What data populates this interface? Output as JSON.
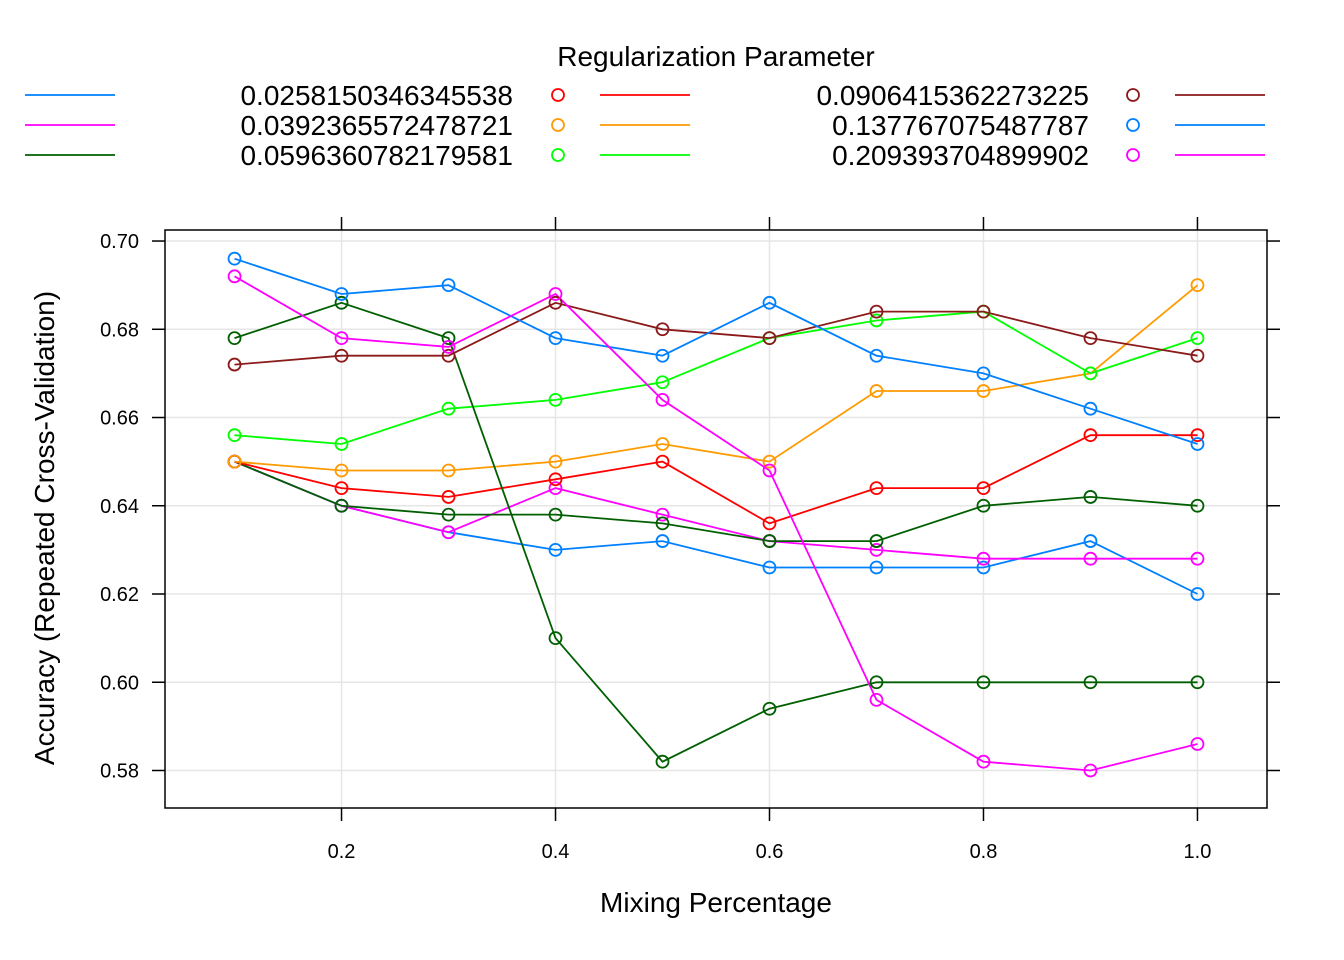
{
  "chart_data": {
    "type": "line",
    "title": "",
    "legend_title": "Regularization Parameter",
    "legend_placement": "top",
    "xlabel": "Mixing Percentage",
    "ylabel": "Accuracy (Repeated Cross-Validation)",
    "xlim": [
      0.035,
      1.065
    ],
    "ylim": [
      0.5715,
      0.7025
    ],
    "x_ticks": [
      0.2,
      0.4,
      0.6,
      0.8,
      1.0
    ],
    "x_tick_labels": [
      "0.2",
      "0.4",
      "0.6",
      "0.8",
      "1.0"
    ],
    "y_ticks": [
      0.58,
      0.6,
      0.62,
      0.64,
      0.66,
      0.68,
      0.7
    ],
    "y_tick_labels": [
      "0.58",
      "0.60",
      "0.62",
      "0.64",
      "0.66",
      "0.68",
      "0.70"
    ],
    "grid": true,
    "x": [
      0.1,
      0.2,
      0.3,
      0.4,
      0.5,
      0.6,
      0.7,
      0.8,
      0.9,
      1.0
    ],
    "series": [
      {
        "name": "0.0258150346345538",
        "color": "#0080ff",
        "values": [
          0.65,
          0.64,
          0.634,
          0.63,
          0.632,
          0.626,
          0.626,
          0.626,
          0.632,
          0.62
        ]
      },
      {
        "name": "0.0392365572478721",
        "color": "#ff00ff",
        "values": [
          0.65,
          0.64,
          0.634,
          0.644,
          0.638,
          0.632,
          0.63,
          0.628,
          0.628,
          0.628
        ]
      },
      {
        "name": "0.0596360782179581",
        "color": "#005f00",
        "values": [
          0.65,
          0.64,
          0.638,
          0.638,
          0.636,
          0.632,
          0.632,
          0.64,
          0.642,
          0.64
        ]
      },
      {
        "name": "0.0906415362273225",
        "color": "#ff0000",
        "values": [
          0.65,
          0.644,
          0.642,
          0.646,
          0.65,
          0.636,
          0.644,
          0.644,
          0.656,
          0.656
        ]
      },
      {
        "name": "0.137767075487787",
        "color": "#ff9a00",
        "values": [
          0.65,
          0.648,
          0.648,
          0.65,
          0.654,
          0.65,
          0.666,
          0.666,
          0.67,
          0.69
        ]
      },
      {
        "name": "0.209393704899902",
        "color": "#00ff00",
        "values": [
          0.656,
          0.654,
          0.662,
          0.664,
          0.668,
          0.678,
          0.682,
          0.684,
          0.67,
          0.678
        ]
      },
      {
        "name": "",
        "color": "#005f00",
        "values": [
          0.678,
          0.686,
          0.678,
          0.61,
          0.582,
          0.594,
          0.6,
          0.6,
          0.6,
          0.6
        ]
      },
      {
        "name": "",
        "color": "#8b1a1a",
        "values": [
          0.672,
          0.674,
          0.674,
          0.686,
          0.68,
          0.678,
          0.684,
          0.684,
          0.678,
          0.674
        ]
      },
      {
        "name": "",
        "color": "#0080ff",
        "values": [
          0.696,
          0.688,
          0.69,
          0.678,
          0.674,
          0.686,
          0.674,
          0.67,
          0.662,
          0.654
        ]
      },
      {
        "name": "",
        "color": "#ff00ff",
        "values": [
          0.692,
          0.678,
          0.676,
          0.688,
          0.664,
          0.648,
          0.596,
          0.582,
          0.58,
          0.586
        ]
      }
    ],
    "legend_columns": [
      {
        "label": "0.0258150346345538",
        "color": "#0080ff",
        "pt_color": "#ff0000",
        "ln_color": "#ff0000"
      },
      {
        "label": "0.0392365572478721",
        "color": "#ff00ff",
        "pt_color": "#ff9a00",
        "ln_color": "#ff9a00"
      },
      {
        "label": "0.0596360782179581",
        "color": "#005f00",
        "pt_color": "#00ff00",
        "ln_color": "#00ff00"
      },
      {
        "label": "0.0906415362273225",
        "pt_color": "#8b1a1a",
        "ln_color": "#8b1a1a"
      },
      {
        "label": "0.137767075487787",
        "pt_color": "#0080ff",
        "ln_color": "#0080ff"
      },
      {
        "label": "0.209393704899902",
        "pt_color": "#ff00ff",
        "ln_color": "#ff00ff"
      }
    ]
  }
}
